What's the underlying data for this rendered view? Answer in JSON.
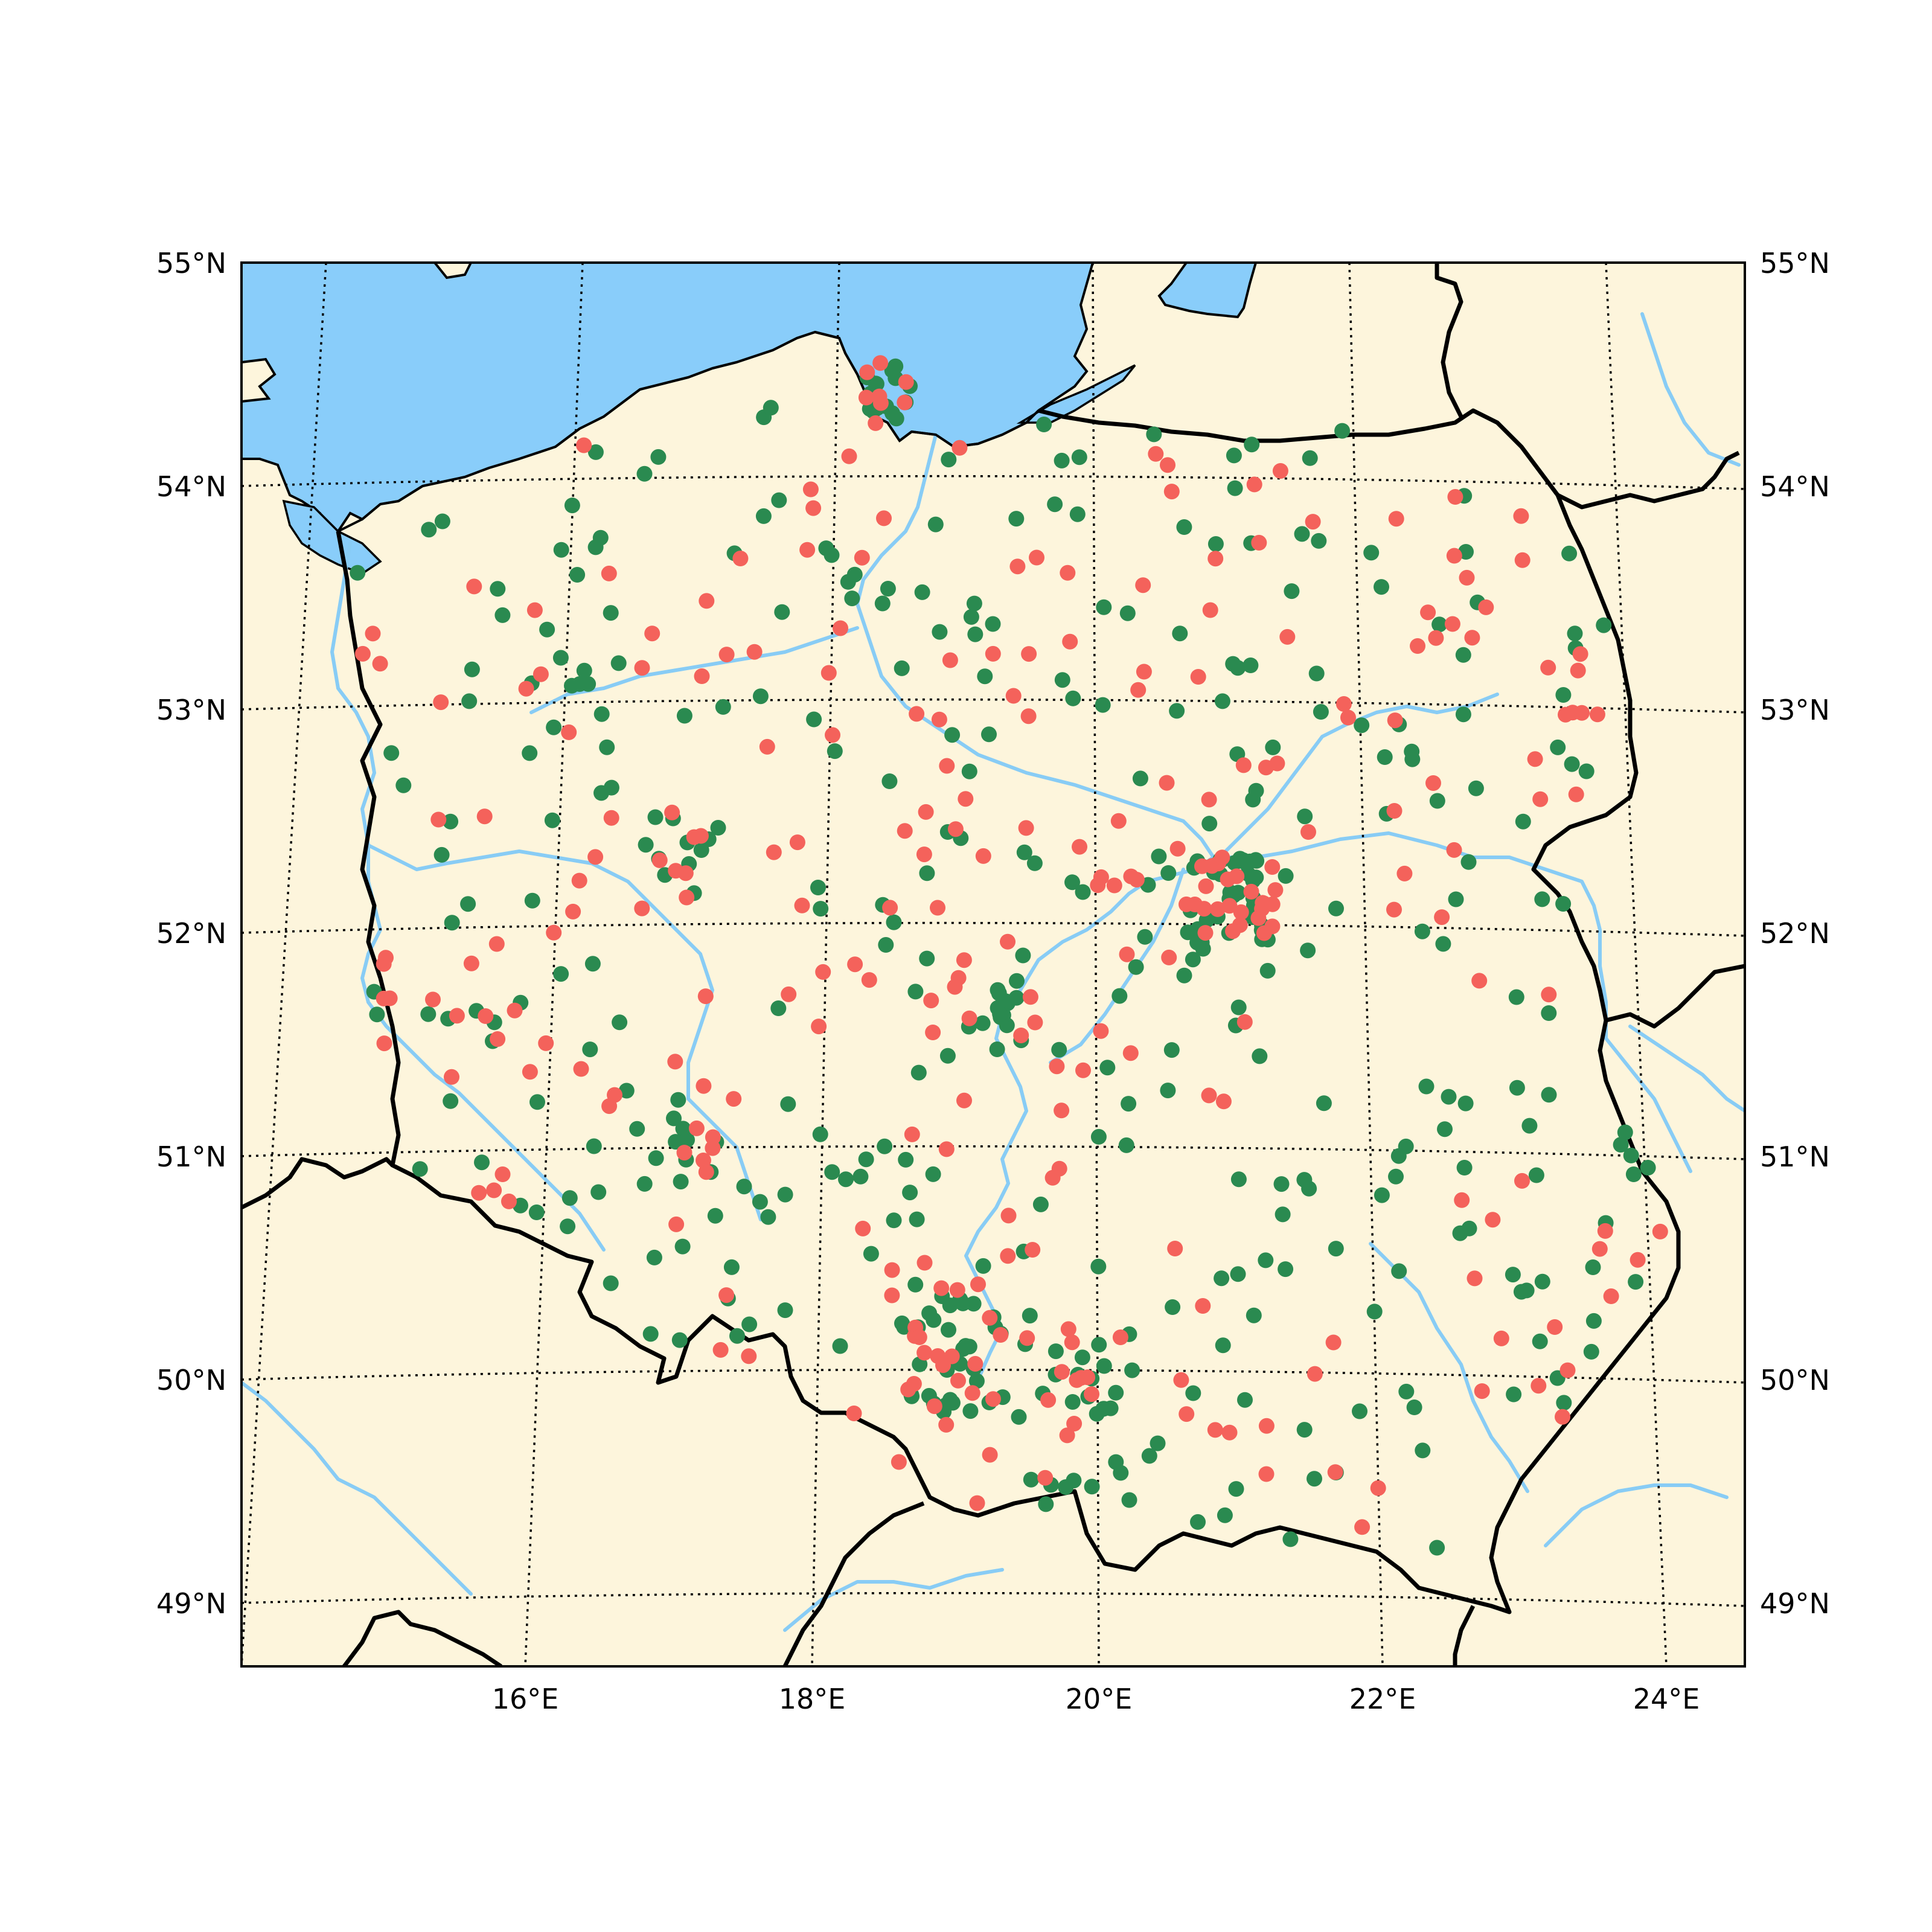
{
  "map": {
    "projection": "conic",
    "extent": {
      "lon_min": 14.0,
      "lon_max": 24.3,
      "lat_min": 48.8,
      "lat_max": 55.0
    },
    "colors": {
      "land": "#fdf5dc",
      "water": "#89cdfa",
      "river": "#88ccf5",
      "border": "#000000",
      "grid": "#000000",
      "marker_green": "#2a8a50",
      "marker_red": "#f4625b"
    },
    "grid": "dotted",
    "lat_labels_left": [
      "55°N",
      "54°N",
      "53°N",
      "52°N",
      "51°N",
      "50°N",
      "49°N"
    ],
    "lat_labels_right": [
      "55°N",
      "54°N",
      "53°N",
      "52°N",
      "51°N",
      "50°N",
      "49°N"
    ],
    "lon_labels": [
      "16°E",
      "18°E",
      "20°E",
      "22°E",
      "24°E"
    ]
  },
  "legend": "none",
  "marker_series": [
    {
      "color_key": "marker_green",
      "shape": "circle"
    },
    {
      "color_key": "marker_red",
      "shape": "circle"
    }
  ]
}
